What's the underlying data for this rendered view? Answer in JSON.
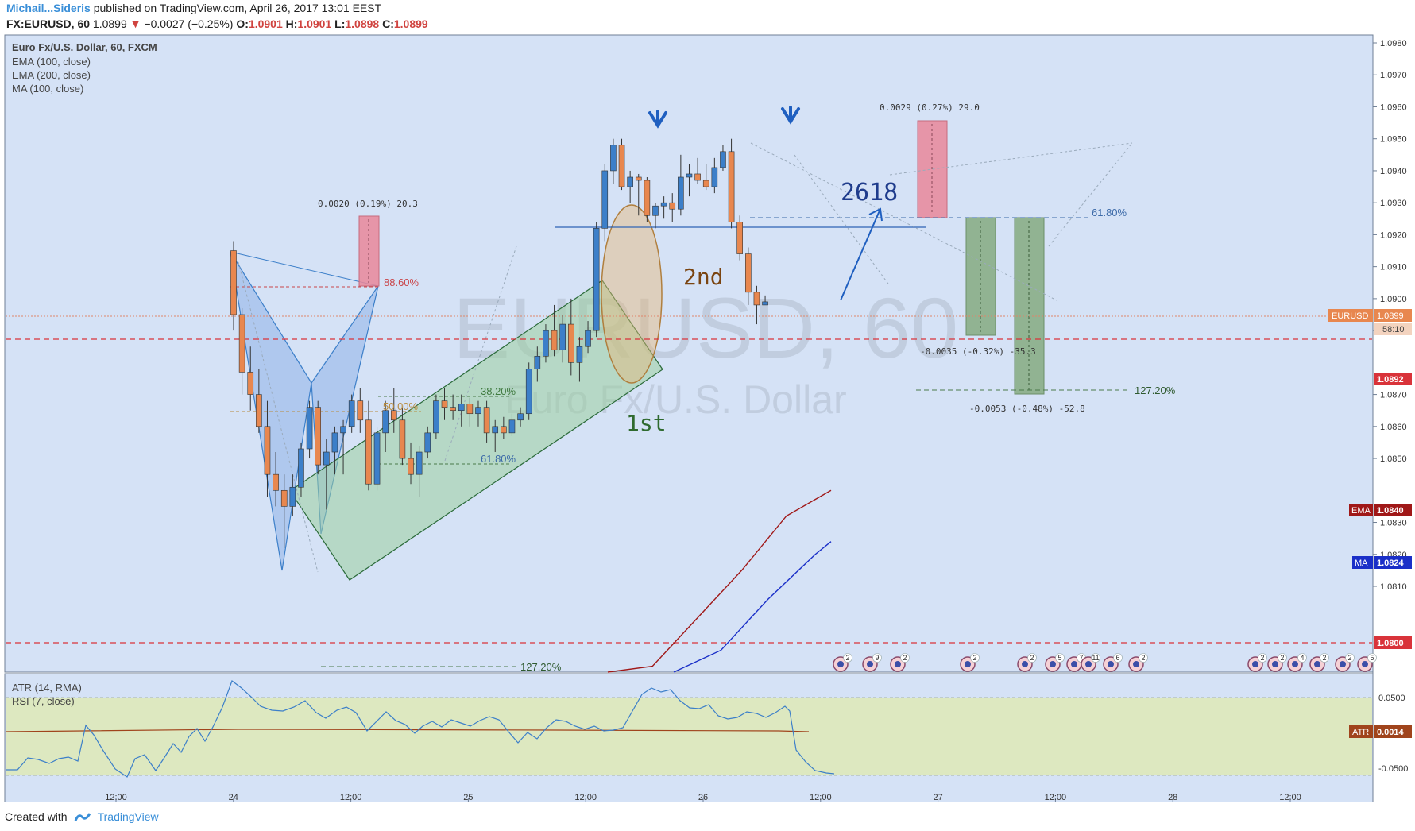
{
  "header": {
    "author": "Michail...Sideris",
    "published": " published on TradingView.com, April 26, 2017 13:01 EEST",
    "symbol": "FX:EURUSD, 60",
    "last": "1.0899",
    "change_arrow": "▼",
    "change": "−0.0027 (−0.25%)",
    "o_label": "O:",
    "o": "1.0901",
    "h_label": "H:",
    "h": "1.0901",
    "l_label": "L:",
    "l": "1.0898",
    "c_label": "C:",
    "c": "1.0899"
  },
  "legend": {
    "title": "Euro Fx/U.S. Dollar, 60, FXCM",
    "ema100": "EMA (100, close)",
    "ema200": "EMA (200, close)",
    "ma100": "MA (100, close)"
  },
  "watermark": {
    "symbol": "EURUSD, 60",
    "name": "Euro Fx/U.S. Dollar"
  },
  "annotations": {
    "second": "2nd",
    "first": "1st",
    "target": "2618",
    "fib_886": "88.60%",
    "fib_382": "38.20%",
    "fib_50": "50.00%",
    "fib_618_low": "61.80%",
    "fib_618_high": "61.80%",
    "fib_1272_high": "127.20%",
    "fib_1272_low": "127.20%",
    "measure_1": "0.0020 (0.19%) 20.3",
    "measure_2": "0.0029 (0.27%) 29.0",
    "measure_3": "-0.0035 (-0.32%) -35.3",
    "measure_4": "-0.0053 (-0.48%) -52.8"
  },
  "price_axis": {
    "ticks": [
      "1.0980",
      "1.0970",
      "1.0960",
      "1.0950",
      "1.0940",
      "1.0930",
      "1.0920",
      "1.0910",
      "1.0900",
      "1.0890",
      "1.0870",
      "1.0860",
      "1.0850",
      "1.0830",
      "1.0820",
      "1.0810"
    ],
    "eurusd_label": "EURUSD",
    "eurusd_value": "1.0899",
    "countdown": "58:10",
    "level_1": "1.0892",
    "ema_label": "EMA",
    "ema_value": "1.0840",
    "ma_label": "MA",
    "ma_value": "1.0824",
    "level_2": "1.0800"
  },
  "lower_pane": {
    "atr_title": "ATR (14, RMA)",
    "rsi_title": "RSI (7, close)",
    "ticks": [
      "0.0500",
      "-0.0500"
    ],
    "atr_label": "ATR",
    "atr_value": "0.0014"
  },
  "time_axis": {
    "labels": [
      "12:00",
      "24",
      "12:00",
      "25",
      "12:00",
      "26",
      "12:00",
      "27",
      "12:00",
      "28",
      "12:00"
    ]
  },
  "events": {
    "counts": [
      "2",
      "9",
      "2",
      "2",
      "2",
      "5",
      "7",
      "11",
      "6",
      "2",
      "2",
      "2",
      "4",
      "2",
      "2",
      "5",
      "5"
    ]
  },
  "footer": {
    "created": "Created with",
    "brand": "TradingView"
  },
  "colors": {
    "up": "#3c7fc9",
    "down": "#e8874f",
    "background": "#d5e2f6",
    "ema": "#a01818",
    "ma": "#1a2fc8"
  },
  "chart_data": {
    "type": "candlestick",
    "title": "Euro Fx/U.S. Dollar, 60, FXCM",
    "ylim": [
      1.0775,
      1.0985
    ],
    "series": [
      {
        "name": "EURUSD",
        "ohlc": [
          [
            1.0915,
            1.0918,
            1.089,
            1.0895
          ],
          [
            1.0895,
            1.0897,
            1.087,
            1.0877
          ],
          [
            1.0877,
            1.0885,
            1.0865,
            1.087
          ],
          [
            1.087,
            1.0878,
            1.0858,
            1.086
          ],
          [
            1.086,
            1.0868,
            1.0838,
            1.0845
          ],
          [
            1.0845,
            1.0852,
            1.0835,
            1.084
          ],
          [
            1.084,
            1.0845,
            1.0822,
            1.0835
          ],
          [
            1.0835,
            1.0845,
            1.0832,
            1.0841
          ],
          [
            1.0841,
            1.0855,
            1.0838,
            1.0853
          ],
          [
            1.0853,
            1.0868,
            1.085,
            1.0866
          ],
          [
            1.0866,
            1.0868,
            1.0845,
            1.0848
          ],
          [
            1.0848,
            1.0856,
            1.0834,
            1.0852
          ],
          [
            1.0852,
            1.086,
            1.0845,
            1.0858
          ],
          [
            1.0858,
            1.0862,
            1.0845,
            1.086
          ],
          [
            1.086,
            1.087,
            1.0858,
            1.0868
          ],
          [
            1.0868,
            1.0872,
            1.0858,
            1.0862
          ],
          [
            1.0862,
            1.0868,
            1.084,
            1.0842
          ],
          [
            1.0842,
            1.086,
            1.084,
            1.0858
          ],
          [
            1.0858,
            1.0868,
            1.0852,
            1.0865
          ],
          [
            1.0865,
            1.0872,
            1.0858,
            1.0862
          ],
          [
            1.0862,
            1.0866,
            1.0848,
            1.085
          ],
          [
            1.085,
            1.0855,
            1.0842,
            1.0845
          ],
          [
            1.0845,
            1.0854,
            1.0838,
            1.0852
          ],
          [
            1.0852,
            1.086,
            1.085,
            1.0858
          ],
          [
            1.0858,
            1.087,
            1.0856,
            1.0868
          ],
          [
            1.0868,
            1.0872,
            1.0862,
            1.0866
          ],
          [
            1.0866,
            1.087,
            1.0862,
            1.0865
          ],
          [
            1.0865,
            1.087,
            1.086,
            1.0867
          ],
          [
            1.0867,
            1.0869,
            1.086,
            1.0864
          ],
          [
            1.0864,
            1.0868,
            1.086,
            1.0866
          ],
          [
            1.0866,
            1.0868,
            1.0855,
            1.0858
          ],
          [
            1.0858,
            1.0862,
            1.0852,
            1.086
          ],
          [
            1.086,
            1.0863,
            1.0856,
            1.0858
          ],
          [
            1.0858,
            1.0864,
            1.0857,
            1.0862
          ],
          [
            1.0862,
            1.0866,
            1.086,
            1.0864
          ],
          [
            1.0864,
            1.088,
            1.0862,
            1.0878
          ],
          [
            1.0878,
            1.0885,
            1.0874,
            1.0882
          ],
          [
            1.0882,
            1.0892,
            1.088,
            1.089
          ],
          [
            1.089,
            1.0898,
            1.0882,
            1.0884
          ],
          [
            1.0884,
            1.0895,
            1.088,
            1.0892
          ],
          [
            1.0892,
            1.09,
            1.0876,
            1.088
          ],
          [
            1.088,
            1.0888,
            1.0874,
            1.0885
          ],
          [
            1.0885,
            1.0893,
            1.0883,
            1.089
          ],
          [
            1.089,
            1.0924,
            1.0888,
            1.0922
          ],
          [
            1.0922,
            1.0942,
            1.0918,
            1.094
          ],
          [
            1.094,
            1.095,
            1.0936,
            1.0948
          ],
          [
            1.0948,
            1.095,
            1.0934,
            1.0935
          ],
          [
            1.0935,
            1.094,
            1.093,
            1.0938
          ],
          [
            1.0938,
            1.0939,
            1.0926,
            1.0937
          ],
          [
            1.0937,
            1.0938,
            1.0924,
            1.0926
          ],
          [
            1.0926,
            1.093,
            1.0922,
            1.0929
          ],
          [
            1.0929,
            1.0932,
            1.0925,
            1.093
          ],
          [
            1.093,
            1.0933,
            1.0924,
            1.0928
          ],
          [
            1.0928,
            1.0945,
            1.0926,
            1.0938
          ],
          [
            1.0938,
            1.0942,
            1.0932,
            1.0939
          ],
          [
            1.0939,
            1.0944,
            1.0936,
            1.0937
          ],
          [
            1.0937,
            1.0942,
            1.0934,
            1.0935
          ],
          [
            1.0935,
            1.0944,
            1.0933,
            1.0941
          ],
          [
            1.0941,
            1.0948,
            1.094,
            1.0946
          ],
          [
            1.0946,
            1.095,
            1.0922,
            1.0924
          ],
          [
            1.0924,
            1.0926,
            1.0912,
            1.0914
          ],
          [
            1.0914,
            1.0916,
            1.0898,
            1.0902
          ],
          [
            1.0902,
            1.0904,
            1.0892,
            1.0898
          ],
          [
            1.0898,
            1.0901,
            1.0898,
            1.0899
          ]
        ]
      },
      {
        "name": "EMA (100, close)",
        "x_fraction": [
          0,
          0.2,
          0.4,
          0.6,
          0.8,
          1.0
        ],
        "values": [
          1.0775,
          1.0785,
          1.08,
          1.0815,
          1.0832,
          1.084
        ]
      },
      {
        "name": "MA (100, close)",
        "x_fraction": [
          0,
          0.3,
          0.6,
          0.9,
          1.0
        ],
        "values": [
          1.0775,
          1.079,
          1.0806,
          1.082,
          1.0824
        ]
      }
    ],
    "reference_lines": [
      1.0892,
      1.08,
      1.0899
    ],
    "xlabels": [
      "12:00",
      "24",
      "12:00",
      "25",
      "12:00",
      "26",
      "12:00",
      "27",
      "12:00",
      "28",
      "12:00"
    ]
  }
}
